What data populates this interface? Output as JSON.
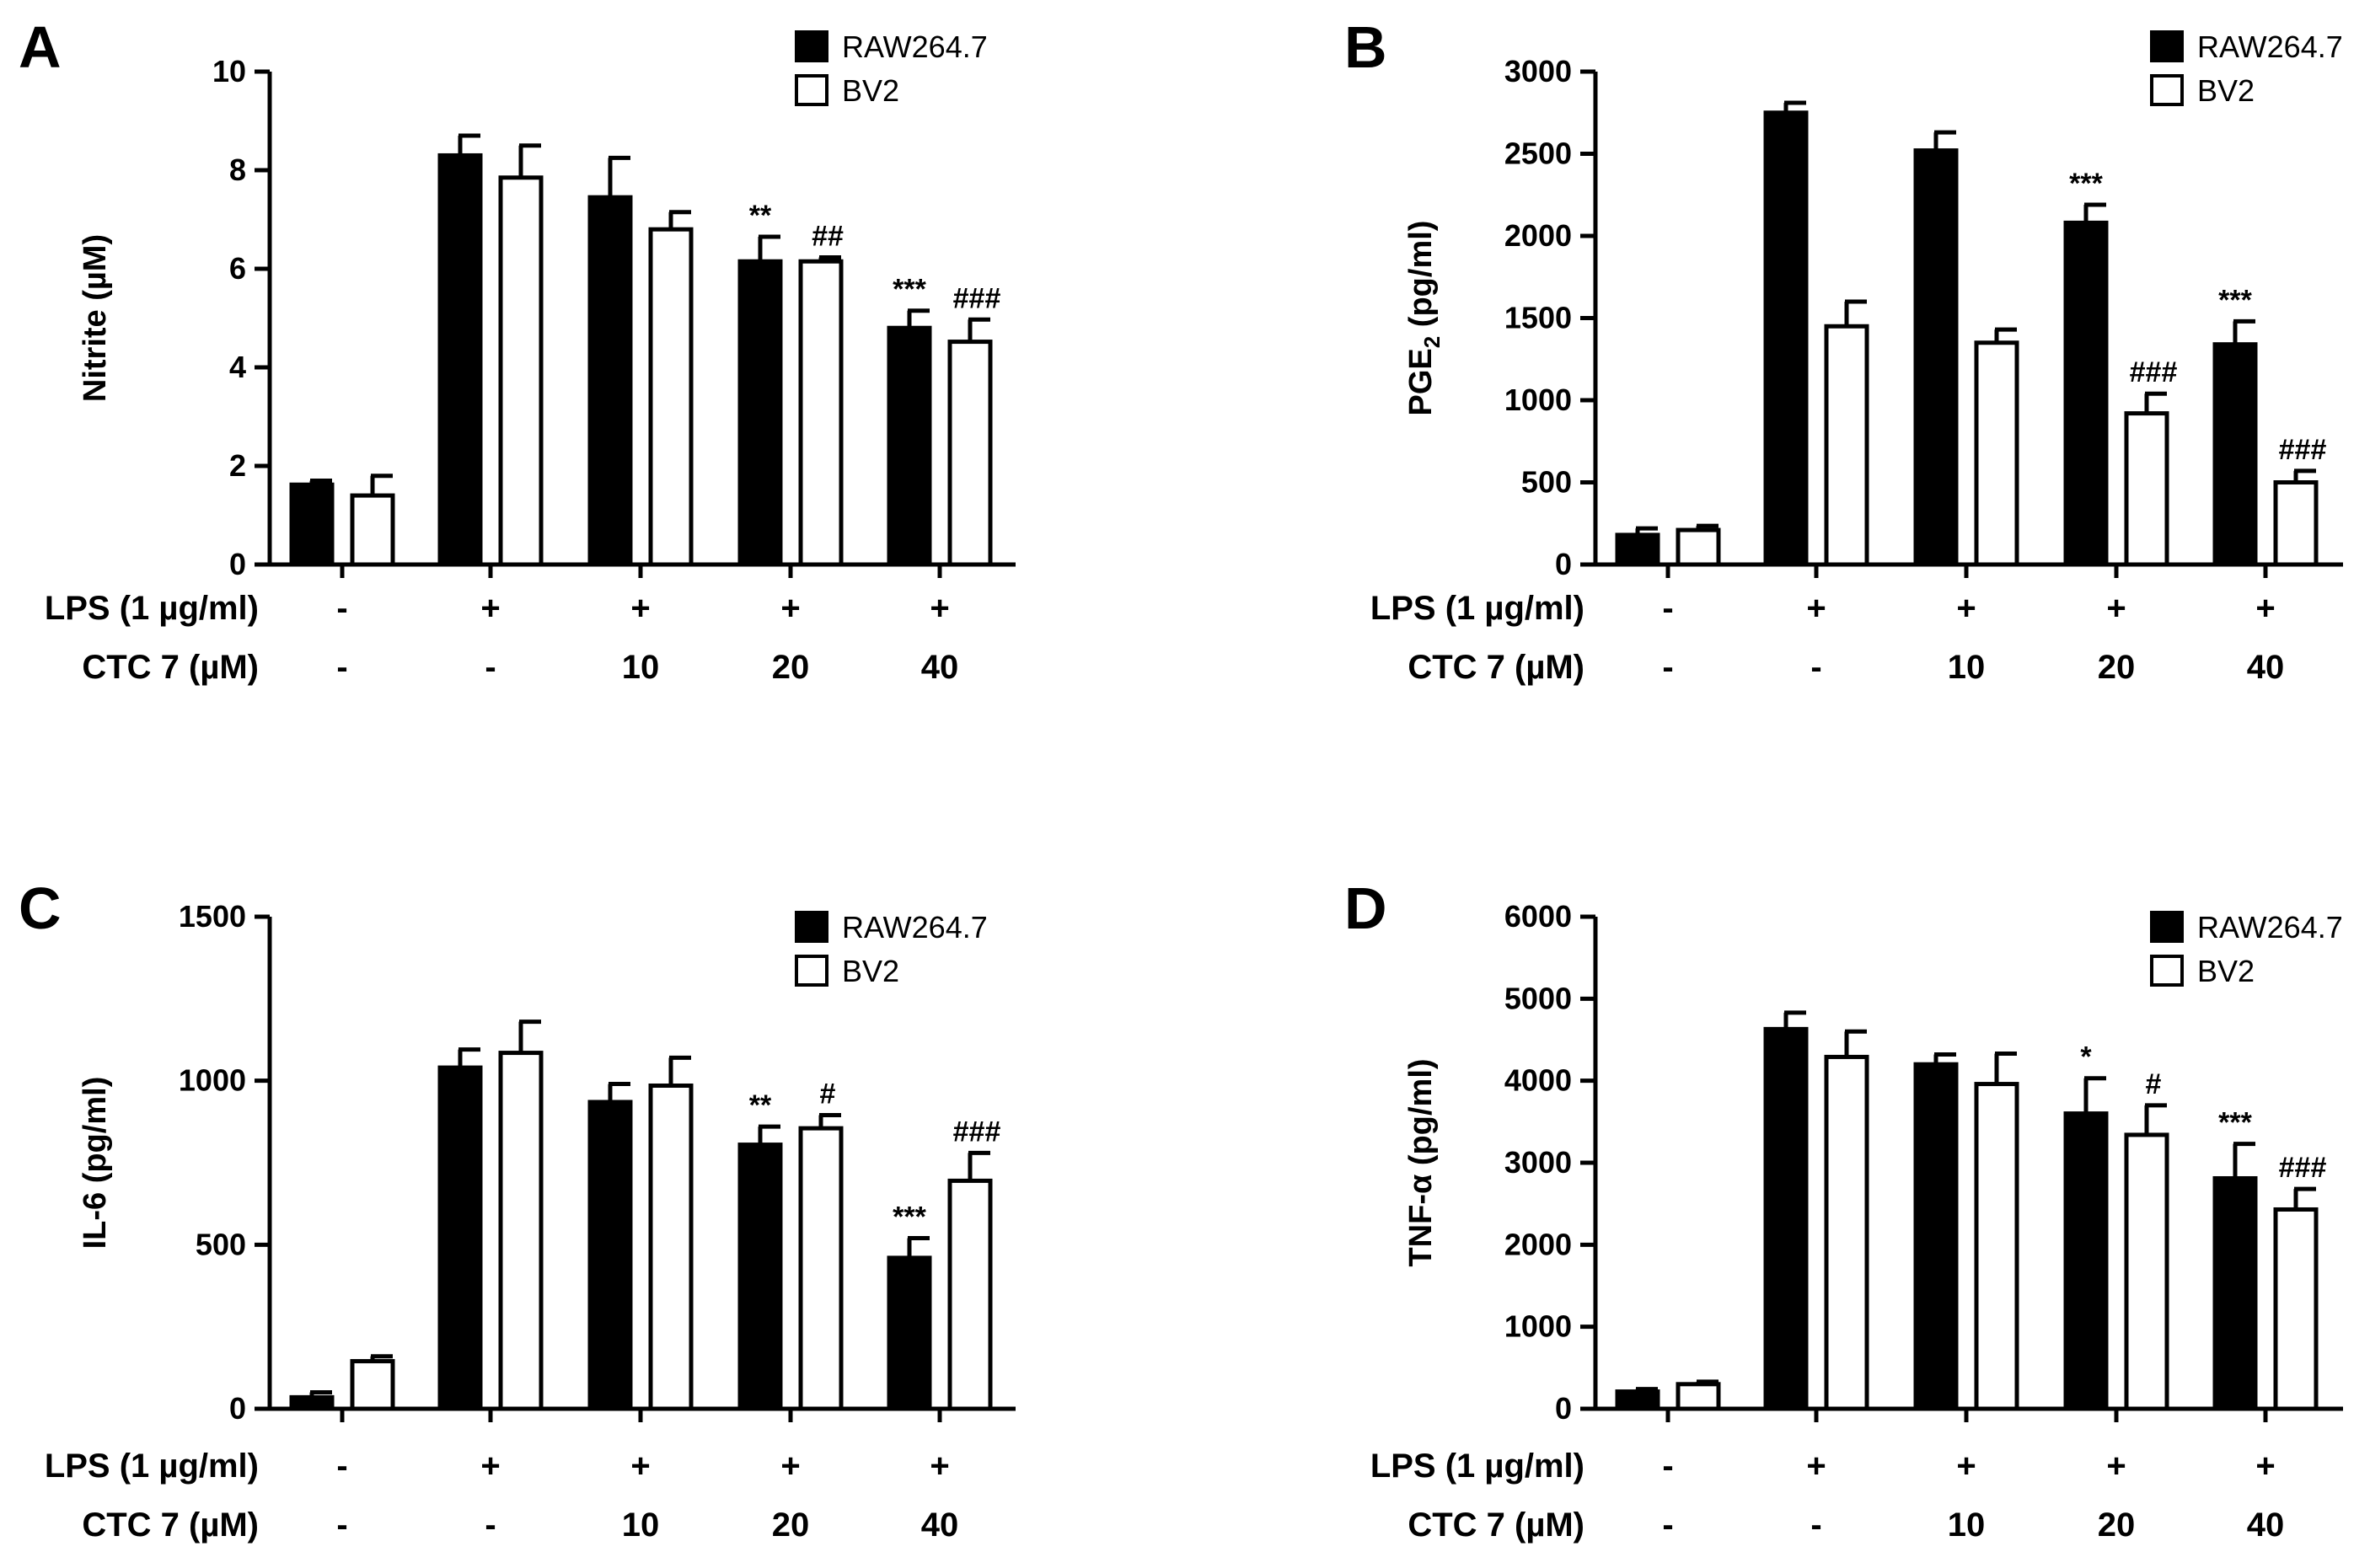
{
  "colors": {
    "raw": "#000000",
    "bv2": "#ffffff",
    "axis": "#000000"
  },
  "chart_data": [
    {
      "panel": "A",
      "type": "bar",
      "ylabel": "Nitrite (µM)",
      "ylim": [
        0,
        10
      ],
      "yticks": [
        0,
        2,
        4,
        6,
        8,
        10
      ],
      "categories": [
        "control",
        "LPS",
        "LPS + CTC 7 10",
        "LPS + CTC 7 20",
        "LPS + CTC 7 40"
      ],
      "lps_row": {
        "label": "LPS (1 µg/ml)",
        "values": [
          "-",
          "+",
          "+",
          "+",
          "+"
        ]
      },
      "ctc_row": {
        "label": "CTC 7 (µM)",
        "values": [
          "-",
          "-",
          "10",
          "20",
          "40"
        ]
      },
      "series": [
        {
          "name": "RAW264.7",
          "values": [
            1.62,
            8.3,
            7.45,
            6.15,
            4.8
          ],
          "errors": [
            0.08,
            0.4,
            0.8,
            0.5,
            0.35
          ],
          "annotations": [
            "",
            "",
            "",
            "**",
            "***"
          ]
        },
        {
          "name": "BV2",
          "values": [
            1.4,
            7.85,
            6.8,
            6.15,
            4.52
          ],
          "errors": [
            0.4,
            0.65,
            0.35,
            0.08,
            0.45
          ],
          "annotations": [
            "",
            "",
            "",
            "##",
            "###"
          ]
        }
      ]
    },
    {
      "panel": "B",
      "type": "bar",
      "ylabel": "PGE",
      "ylabel_sub": "2",
      "ylabel_tail": " (pg/ml)",
      "ylim": [
        0,
        3000
      ],
      "yticks": [
        0,
        500,
        1000,
        1500,
        2000,
        2500,
        3000
      ],
      "categories": [
        "control",
        "LPS",
        "LPS + CTC 7 10",
        "LPS + CTC 7 20",
        "LPS + CTC 7 40"
      ],
      "lps_row": {
        "label": "LPS (1 µg/ml)",
        "values": [
          "-",
          "+",
          "+",
          "+",
          "+"
        ]
      },
      "ctc_row": {
        "label": "CTC 7 (µM)",
        "values": [
          "-",
          "-",
          "10",
          "20",
          "40"
        ]
      },
      "series": [
        {
          "name": "RAW264.7",
          "values": [
            180,
            2750,
            2520,
            2080,
            1340
          ],
          "errors": [
            40,
            60,
            110,
            110,
            140
          ],
          "annotations": [
            "",
            "",
            "",
            "***",
            "***"
          ]
        },
        {
          "name": "BV2",
          "values": [
            210,
            1450,
            1350,
            920,
            500
          ],
          "errors": [
            25,
            150,
            80,
            120,
            70
          ],
          "annotations": [
            "",
            "",
            "",
            "###",
            "###"
          ]
        }
      ]
    },
    {
      "panel": "C",
      "type": "bar",
      "ylabel": "IL-6 (pg/ml)",
      "ylim": [
        0,
        1500
      ],
      "yticks": [
        0,
        500,
        1000,
        1500
      ],
      "categories": [
        "control",
        "LPS",
        "LPS + CTC 7 10",
        "LPS + CTC 7 20",
        "LPS + CTC 7 40"
      ],
      "lps_row": {
        "label": "LPS (1 µg/ml)",
        "values": [
          "-",
          "+",
          "+",
          "+",
          "+"
        ]
      },
      "ctc_row": {
        "label": "CTC 7 (µM)",
        "values": [
          "-",
          "-",
          "10",
          "20",
          "40"
        ]
      },
      "series": [
        {
          "name": "RAW264.7",
          "values": [
            35,
            1040,
            935,
            805,
            460
          ],
          "errors": [
            15,
            55,
            55,
            55,
            60
          ],
          "annotations": [
            "",
            "",
            "",
            "**",
            "***"
          ]
        },
        {
          "name": "BV2",
          "values": [
            145,
            1085,
            985,
            855,
            695
          ],
          "errors": [
            15,
            95,
            85,
            40,
            85
          ],
          "annotations": [
            "",
            "",
            "",
            "#",
            "###"
          ]
        }
      ]
    },
    {
      "panel": "D",
      "type": "bar",
      "ylabel": "TNF-α (pg/ml)",
      "ylim": [
        0,
        6000
      ],
      "yticks": [
        0,
        1000,
        2000,
        3000,
        4000,
        5000,
        6000
      ],
      "categories": [
        "control",
        "LPS",
        "LPS + CTC 7 10",
        "LPS + CTC 7 20",
        "LPS + CTC 7 40"
      ],
      "lps_row": {
        "label": "LPS (1 µg/ml)",
        "values": [
          "-",
          "+",
          "+",
          "+",
          "+"
        ]
      },
      "ctc_row": {
        "label": "CTC 7 (µM)",
        "values": [
          "-",
          "-",
          "10",
          "20",
          "40"
        ]
      },
      "series": [
        {
          "name": "RAW264.7",
          "values": [
            210,
            4630,
            4200,
            3600,
            2810
          ],
          "errors": [
            30,
            200,
            120,
            430,
            420
          ],
          "annotations": [
            "",
            "",
            "",
            "*",
            "***"
          ]
        },
        {
          "name": "BV2",
          "values": [
            300,
            4290,
            3960,
            3340,
            2430
          ],
          "errors": [
            30,
            310,
            370,
            360,
            250
          ],
          "annotations": [
            "",
            "",
            "",
            "#",
            "###"
          ]
        }
      ]
    }
  ]
}
